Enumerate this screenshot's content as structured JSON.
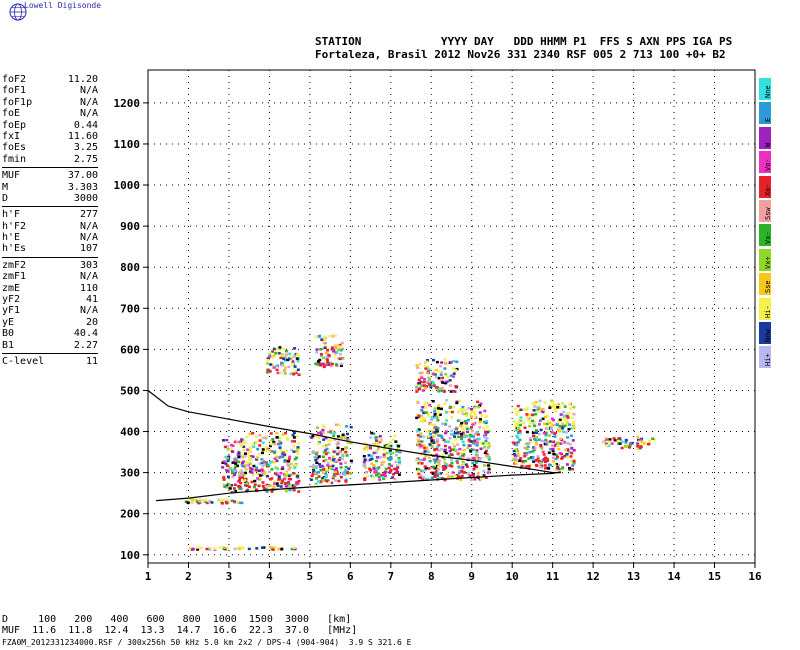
{
  "header": {
    "brand": "Lowell Digisonde",
    "line1": "STATION            YYYY DAY   DDD HHMM P1  FFS S AXN PPS IGA PS",
    "line2": "Fortaleza, Brasil 2012 Nov26 331 2340 RSF 005 2 713 100 +0+ B2"
  },
  "params": [
    [
      [
        "foF2",
        "11.20"
      ],
      [
        "foF1",
        "N/A"
      ],
      [
        "foF1p",
        "N/A"
      ],
      [
        "foE",
        "N/A"
      ],
      [
        "foEp",
        "0.44"
      ],
      [
        "fxI",
        "11.60"
      ],
      [
        "foEs",
        "3.25"
      ],
      [
        "fmin",
        "2.75"
      ]
    ],
    [
      [
        "MUF",
        "37.00"
      ],
      [
        "M",
        "3.303"
      ],
      [
        "D",
        "3000"
      ]
    ],
    [
      [
        "h'F",
        "277"
      ],
      [
        "h'F2",
        "N/A"
      ],
      [
        "h'E",
        "N/A"
      ],
      [
        "h'Es",
        "107"
      ]
    ],
    [
      [
        "zmF2",
        "303"
      ],
      [
        "zmF1",
        "N/A"
      ],
      [
        "zmE",
        "110"
      ],
      [
        "yF2",
        "41"
      ],
      [
        "yF1",
        "N/A"
      ],
      [
        "yE",
        "20"
      ],
      [
        "B0",
        "40.4"
      ],
      [
        "B1",
        "2.27"
      ]
    ],
    [
      [
        "C-level",
        "11"
      ]
    ]
  ],
  "legend": [
    {
      "label": "Nne",
      "color": "#33e0e0"
    },
    {
      "label": "E",
      "color": "#2a9bd8"
    },
    {
      "label": "W",
      "color": "#a020c0"
    },
    {
      "label": "Vo-",
      "color": "#ee2fbf"
    },
    {
      "label": "Xo-",
      "color": "#e8202a"
    },
    {
      "label": "Ssw",
      "color": "#f3a0a0"
    },
    {
      "label": "Vx-",
      "color": "#2ab42a"
    },
    {
      "label": "Vx+",
      "color": "#8fd82a"
    },
    {
      "label": "Sse",
      "color": "#f7c81a"
    },
    {
      "label": "Hi-",
      "color": "#f5f04a"
    },
    {
      "label": "Nnw",
      "color": "#1a3aa0"
    },
    {
      "label": "Hi+",
      "color": "#b8b8f0"
    }
  ],
  "footer": {
    "line1": "D     100   200   400   600   800  1000  1500  3000   [km]",
    "line2": "MUF  11.6  11.8  12.4  13.3  14.7  16.6  22.3  37.0   [MHz]",
    "line3": "FZA0M_2012331234000.RSF / 300x256h 50 kHz 5.0 km 2x2 / DPS-4 (904-904)  3.9 S 321.6 E"
  },
  "chart_data": {
    "type": "scatter",
    "title": "",
    "xlabel": "",
    "ylabel": "",
    "xlim": [
      1,
      16
    ],
    "ylim": [
      80,
      1280
    ],
    "xticks": [
      1,
      2,
      3,
      4,
      5,
      6,
      7,
      8,
      9,
      10,
      11,
      12,
      13,
      14,
      15,
      16
    ],
    "yticks": [
      100,
      200,
      300,
      400,
      500,
      600,
      700,
      800,
      900,
      1000,
      1100,
      1200
    ],
    "grid": true,
    "series": [
      {
        "kind": "o-trace",
        "x": [
          1.0,
          1.5,
          2.0,
          3.0,
          4.0,
          5.0,
          6.0,
          7.0,
          8.0,
          9.0,
          10.0,
          10.5,
          11.0,
          11.2
        ],
        "y": [
          500,
          462,
          448,
          430,
          412,
          395,
          375,
          358,
          342,
          330,
          315,
          308,
          300,
          300
        ]
      },
      {
        "kind": "x-trace",
        "x": [
          1.2,
          2.0,
          3.0,
          4.0,
          5.0,
          6.0,
          7.0,
          8.0,
          9.0,
          10.0,
          11.0,
          11.2
        ],
        "y": [
          232,
          238,
          250,
          258,
          265,
          270,
          276,
          282,
          288,
          294,
          298,
          302
        ]
      },
      {
        "kind": "echo-region",
        "x": [
          1.9,
          4.9
        ],
        "y": [
          115,
          122
        ]
      },
      {
        "kind": "echo-region",
        "x": [
          1.9,
          3.3
        ],
        "y": [
          228,
          238
        ]
      },
      {
        "kind": "echo-region",
        "x": [
          2.8,
          4.7
        ],
        "y": [
          255,
          400
        ]
      },
      {
        "kind": "echo-region",
        "x": [
          3.9,
          4.7
        ],
        "y": [
          540,
          610
        ]
      },
      {
        "kind": "echo-region",
        "x": [
          5.0,
          6.0
        ],
        "y": [
          275,
          420
        ]
      },
      {
        "kind": "echo-region",
        "x": [
          5.1,
          5.8
        ],
        "y": [
          560,
          640
        ]
      },
      {
        "kind": "echo-region",
        "x": [
          6.3,
          7.2
        ],
        "y": [
          285,
          400
        ]
      },
      {
        "kind": "echo-region",
        "x": [
          7.6,
          9.4
        ],
        "y": [
          285,
          480
        ]
      },
      {
        "kind": "echo-region",
        "x": [
          7.6,
          8.6
        ],
        "y": [
          500,
          580
        ]
      },
      {
        "kind": "echo-region",
        "x": [
          10.0,
          11.5
        ],
        "y": [
          310,
          480
        ]
      },
      {
        "kind": "echo-region",
        "x": [
          12.2,
          13.5
        ],
        "y": [
          360,
          390
        ]
      }
    ]
  }
}
